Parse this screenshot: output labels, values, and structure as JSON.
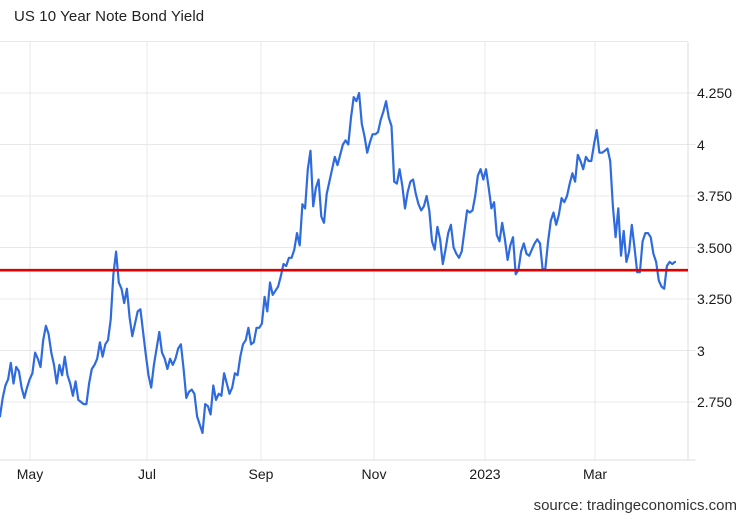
{
  "chart": {
    "title": "US 10 Year Note Bond Yield",
    "source": "source: tradingeconomics.com",
    "colors": {
      "line": "#2f6bde",
      "reference_line": "#e00000",
      "grid": "#e8e8e8",
      "axis": "#dcdcdc",
      "label_text": "#1a1a1a"
    }
  },
  "chart_data": {
    "type": "line",
    "title": "US 10 Year Note Bond Yield",
    "xlabel": "",
    "ylabel": "",
    "legend": false,
    "grid": true,
    "x_tick_labels": [
      "May",
      "Jul",
      "Sep",
      "Nov",
      "2023",
      "Mar"
    ],
    "y_tick_labels": [
      "4.250",
      "4",
      "3.750",
      "3.500",
      "3.250",
      "3",
      "2.750"
    ],
    "y_tick_values": [
      4.25,
      4.0,
      3.75,
      3.5,
      3.25,
      3.0,
      2.75
    ],
    "ylim": [
      2.47,
      4.5
    ],
    "reference_line": 3.39,
    "series": [
      {
        "name": "US 10 Year Note Bond Yield",
        "values": [
          2.68,
          2.77,
          2.83,
          2.86,
          2.94,
          2.84,
          2.92,
          2.9,
          2.82,
          2.77,
          2.82,
          2.86,
          2.89,
          2.99,
          2.96,
          2.92,
          3.05,
          3.12,
          3.08,
          2.99,
          2.93,
          2.84,
          2.93,
          2.88,
          2.97,
          2.88,
          2.84,
          2.78,
          2.85,
          2.76,
          2.75,
          2.74,
          2.74,
          2.84,
          2.91,
          2.93,
          2.96,
          3.04,
          2.97,
          3.03,
          3.05,
          3.15,
          3.37,
          3.48,
          3.33,
          3.3,
          3.23,
          3.3,
          3.16,
          3.07,
          3.13,
          3.19,
          3.2,
          3.09,
          2.98,
          2.88,
          2.82,
          2.93,
          3.01,
          3.09,
          2.99,
          2.96,
          2.91,
          2.96,
          2.93,
          2.96,
          3.01,
          3.03,
          2.91,
          2.77,
          2.8,
          2.81,
          2.79,
          2.68,
          2.64,
          2.6,
          2.74,
          2.73,
          2.69,
          2.83,
          2.76,
          2.79,
          2.78,
          2.89,
          2.84,
          2.79,
          2.82,
          2.89,
          2.88,
          2.97,
          3.03,
          3.05,
          3.11,
          3.03,
          3.04,
          3.11,
          3.11,
          3.13,
          3.26,
          3.19,
          3.33,
          3.27,
          3.29,
          3.31,
          3.36,
          3.42,
          3.41,
          3.45,
          3.45,
          3.49,
          3.57,
          3.51,
          3.71,
          3.69,
          3.88,
          3.97,
          3.7,
          3.79,
          3.83,
          3.65,
          3.62,
          3.76,
          3.82,
          3.88,
          3.94,
          3.9,
          3.95,
          4.0,
          4.02,
          4.0,
          4.13,
          4.23,
          4.21,
          4.25,
          4.1,
          4.04,
          3.96,
          4.01,
          4.05,
          4.05,
          4.06,
          4.12,
          4.16,
          4.21,
          4.13,
          4.09,
          3.82,
          3.81,
          3.88,
          3.8,
          3.69,
          3.77,
          3.82,
          3.83,
          3.76,
          3.71,
          3.68,
          3.7,
          3.75,
          3.68,
          3.53,
          3.49,
          3.6,
          3.54,
          3.42,
          3.49,
          3.57,
          3.61,
          3.5,
          3.47,
          3.45,
          3.48,
          3.58,
          3.68,
          3.67,
          3.68,
          3.75,
          3.85,
          3.88,
          3.83,
          3.88,
          3.79,
          3.69,
          3.72,
          3.56,
          3.53,
          3.62,
          3.54,
          3.44,
          3.51,
          3.55,
          3.37,
          3.39,
          3.48,
          3.52,
          3.47,
          3.46,
          3.49,
          3.52,
          3.54,
          3.52,
          3.39,
          3.4,
          3.53,
          3.63,
          3.67,
          3.61,
          3.66,
          3.74,
          3.72,
          3.75,
          3.81,
          3.86,
          3.82,
          3.95,
          3.92,
          3.88,
          3.94,
          3.92,
          3.92,
          4.0,
          4.07,
          3.96,
          3.96,
          3.97,
          3.98,
          3.92,
          3.7,
          3.55,
          3.69,
          3.46,
          3.58,
          3.43,
          3.48,
          3.61,
          3.5,
          3.38,
          3.38,
          3.53,
          3.57,
          3.57,
          3.55,
          3.47,
          3.43,
          3.34,
          3.31,
          3.3,
          3.41,
          3.43,
          3.42,
          3.43
        ]
      }
    ]
  }
}
